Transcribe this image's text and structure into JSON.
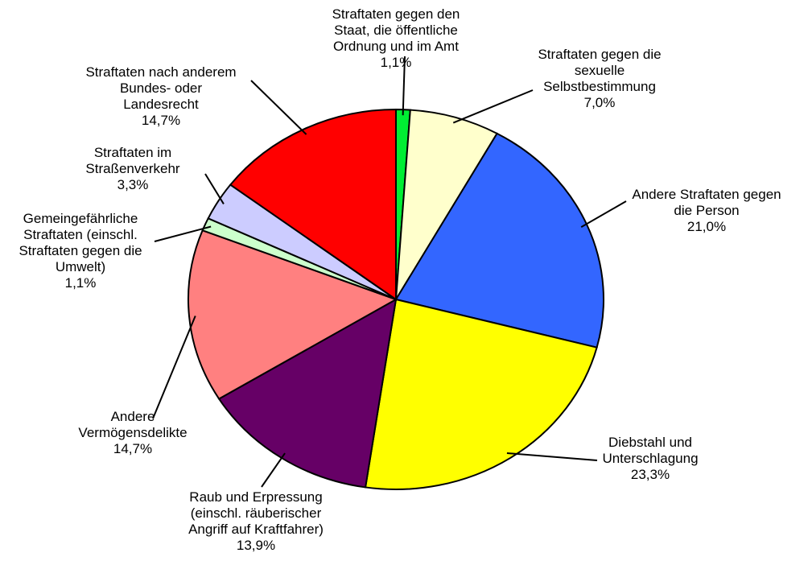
{
  "chart_data": {
    "type": "pie",
    "categories": [
      "Straftaten gegen den\nStaat, die öffentliche\nOrdnung und im Amt",
      "Straftaten gegen die\nsexuelle\nSelbstbestimmung",
      "Andere Straftaten gegen\ndie Person",
      "Diebstahl und\nUnterschlagung",
      "Raub und Erpressung\n(einschl. räuberischer\nAngriff auf Kraftfahrer)",
      "Andere\nVermögensdelikte",
      "Gemeingefährliche\nStraftaten (einschl.\nStraftaten gegen die\nUmwelt)",
      "Straftaten im\nStraßenverkehr",
      "Straftaten nach anderem\nBundes- oder\nLandesrecht"
    ],
    "values": [
      1.1,
      7.0,
      21.0,
      23.3,
      13.9,
      14.7,
      1.1,
      3.3,
      14.7
    ],
    "value_labels": [
      "1,1%",
      "7,0%",
      "21,0%",
      "23,3%",
      "13,9%",
      "14,7%",
      "1,1%",
      "3,3%",
      "14,7%"
    ],
    "colors": [
      "#00ee33",
      "#ffffcc",
      "#3366ff",
      "#ffff00",
      "#660066",
      "#ff8080",
      "#ccffcc",
      "#ccccff",
      "#ff0000"
    ]
  }
}
